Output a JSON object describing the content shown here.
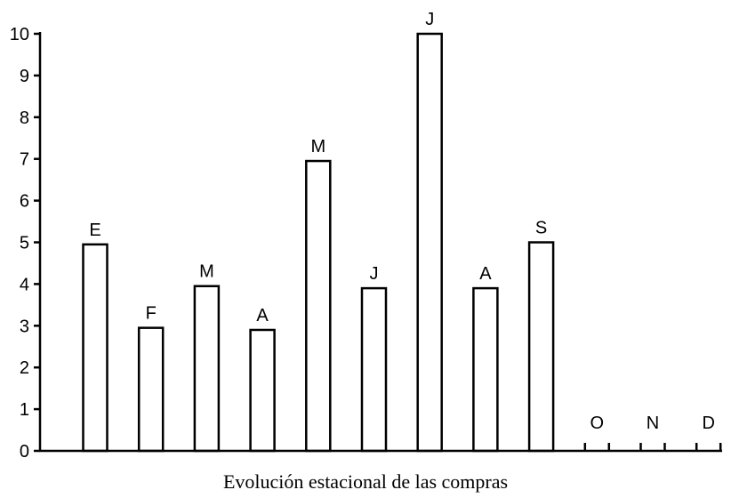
{
  "chart_data": {
    "type": "bar",
    "title": "",
    "caption": "Evolución estacional de las compras",
    "xlabel": "",
    "ylabel": "",
    "ylim": [
      0,
      10
    ],
    "yticks": [
      0,
      1,
      2,
      3,
      4,
      5,
      6,
      7,
      8,
      9,
      10
    ],
    "categories": [
      "E",
      "F",
      "M",
      "A",
      "M",
      "J",
      "J",
      "A",
      "S",
      "O",
      "N",
      "D"
    ],
    "values": [
      4.95,
      2.95,
      3.95,
      2.9,
      6.95,
      3.9,
      10,
      3.9,
      5,
      0,
      0,
      0
    ],
    "grid": false,
    "legend": "none"
  }
}
